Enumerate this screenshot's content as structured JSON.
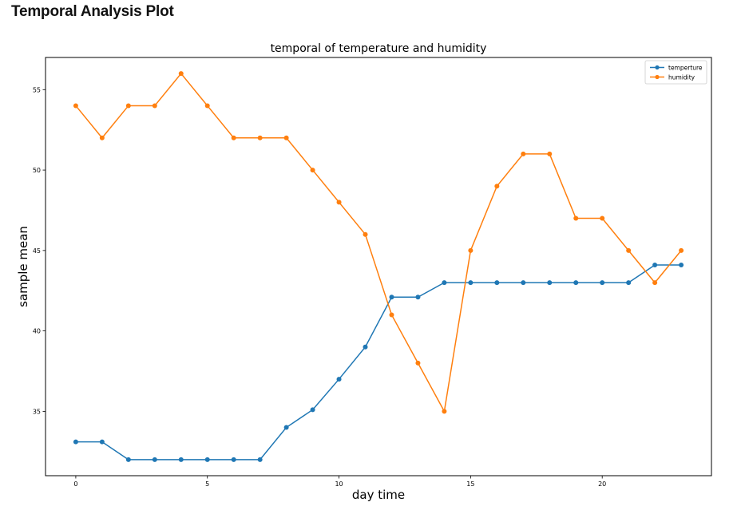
{
  "page": {
    "title": "Temporal Analysis Plot"
  },
  "chart_data": {
    "type": "line",
    "title": "temporal of temperature and humidity",
    "xlabel": "day time",
    "ylabel": "sample mean",
    "xlim": [
      -1.15,
      24.15
    ],
    "ylim": [
      31.0,
      57.0
    ],
    "xticks": [
      0,
      5,
      10,
      15,
      20
    ],
    "yticks": [
      35,
      40,
      45,
      50,
      55
    ],
    "grid": false,
    "legend_position": "top-right",
    "x": [
      0,
      1,
      2,
      3,
      4,
      5,
      6,
      7,
      8,
      9,
      10,
      11,
      12,
      13,
      14,
      15,
      16,
      17,
      18,
      19,
      20,
      21,
      22,
      23
    ],
    "series": [
      {
        "name": "temperture",
        "color": "#1f77b4",
        "values": [
          33.1,
          33.1,
          32.0,
          32.0,
          32.0,
          32.0,
          32.0,
          32.0,
          34.0,
          35.1,
          37.0,
          39.0,
          42.1,
          42.1,
          43.0,
          43.0,
          43.0,
          43.0,
          43.0,
          43.0,
          43.0,
          43.0,
          44.1,
          44.1
        ]
      },
      {
        "name": "humidity",
        "color": "#ff7f0e",
        "values": [
          54,
          52,
          54,
          54,
          56,
          54,
          52,
          52,
          52,
          50,
          48,
          46,
          41,
          38,
          35,
          45,
          49,
          51,
          51,
          47,
          47,
          45,
          43,
          45
        ]
      }
    ]
  }
}
